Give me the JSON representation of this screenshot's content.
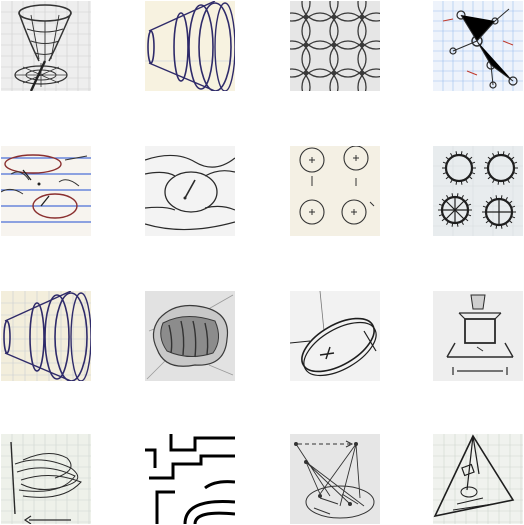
{
  "gallery": {
    "rows": 4,
    "columns": 4,
    "tiles": [
      {
        "name": "sketch-funnel-vortex",
        "paper": "#eeeeee",
        "ink": "#333333"
      },
      {
        "name": "sketch-cone-rings",
        "paper": "#f3eedc",
        "ink": "#2f2b6a"
      },
      {
        "name": "sketch-circle-lattice",
        "paper": "#e6e6e6",
        "ink": "#3a3a3a"
      },
      {
        "name": "sketch-node-network-grid",
        "paper": "#eef3fb",
        "ink": "#2a2a2a"
      },
      {
        "name": "sketch-ellipses-lined-paper",
        "paper": "#f7f4ef",
        "ink": "#8a2f2f"
      },
      {
        "name": "sketch-flow-lines-vortex",
        "paper": "#f3f3f3",
        "ink": "#2a2a2a"
      },
      {
        "name": "sketch-four-small-circles",
        "paper": "#f4f0e4",
        "ink": "#333333"
      },
      {
        "name": "sketch-four-spiky-rings",
        "paper": "#e8ecee",
        "ink": "#1f1f1f"
      },
      {
        "name": "sketch-cone-rings-repeat",
        "paper": "#f3eedc",
        "ink": "#2f2b6a"
      },
      {
        "name": "sketch-shaded-blob",
        "paper": "#e2e2e2",
        "ink": "#3a3a3a"
      },
      {
        "name": "sketch-disc-perspective",
        "paper": "#f2f2f2",
        "ink": "#1e1e1e"
      },
      {
        "name": "sketch-box-on-platform",
        "paper": "#eeeeee",
        "ink": "#2a2a2a"
      },
      {
        "name": "sketch-tangled-lines-grid",
        "paper": "#eef1ea",
        "ink": "#2a2a2a"
      },
      {
        "name": "sketch-maze-lines",
        "paper": "#ffffff",
        "ink": "#000000"
      },
      {
        "name": "sketch-arrow-graph",
        "paper": "#e6e6e6",
        "ink": "#333333"
      },
      {
        "name": "sketch-triangle-pyramid",
        "paper": "#f0f2ee",
        "ink": "#1e1e1e"
      }
    ]
  }
}
